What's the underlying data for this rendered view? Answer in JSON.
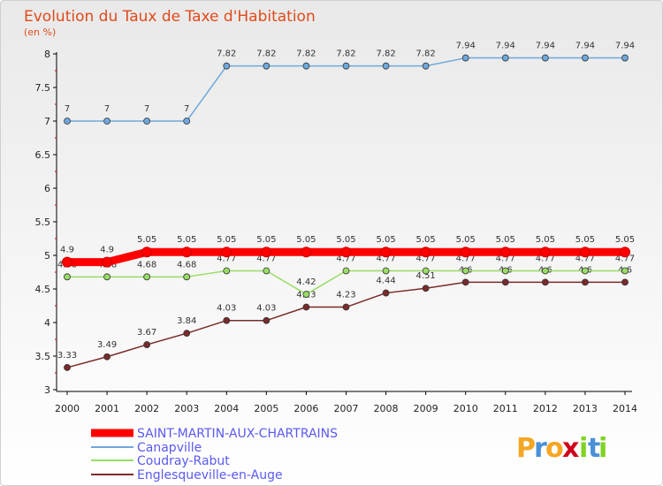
{
  "chart_data": {
    "type": "line",
    "title": "Evolution du Taux de Taxe d'Habitation",
    "subtitle": "(en %)",
    "x": [
      "2000",
      "2001",
      "2002",
      "2003",
      "2004",
      "2005",
      "2006",
      "2007",
      "2008",
      "2009",
      "2010",
      "2011",
      "2012",
      "2013",
      "2014"
    ],
    "ylim": [
      3,
      8
    ],
    "yticks": [
      "3",
      "3.5",
      "4",
      "4.5",
      "5",
      "5.5",
      "6",
      "6.5",
      "7",
      "7.5",
      "8"
    ],
    "grid": false,
    "legend_position": "bottom-left",
    "series": [
      {
        "name": "SAINT-MARTIN-AUX-CHARTRAINS",
        "color": "#ff0000",
        "values": [
          4.9,
          4.9,
          5.05,
          5.05,
          5.05,
          5.05,
          5.05,
          5.05,
          5.05,
          5.05,
          5.05,
          5.05,
          5.05,
          5.05,
          5.05
        ],
        "labels": [
          "4.9",
          "4.9",
          "5.05",
          "5.05",
          "5.05",
          "5.05",
          "5.05",
          "5.05",
          "5.05",
          "5.05",
          "5.05",
          "5.05",
          "5.05",
          "5.05",
          "5.05"
        ]
      },
      {
        "name": "Canapville",
        "color": "#6fa8dc",
        "values": [
          7,
          7,
          7,
          7,
          7.82,
          7.82,
          7.82,
          7.82,
          7.82,
          7.82,
          7.94,
          7.94,
          7.94,
          7.94,
          7.94
        ],
        "labels": [
          "7",
          "7",
          "7",
          "7",
          "7.82",
          "7.82",
          "7.82",
          "7.82",
          "7.82",
          "7.82",
          "7.94",
          "7.94",
          "7.94",
          "7.94",
          "7.94"
        ]
      },
      {
        "name": "Coudray-Rabut",
        "color": "#99dd66",
        "values": [
          4.68,
          4.68,
          4.68,
          4.68,
          4.77,
          4.77,
          4.42,
          4.77,
          4.77,
          4.77,
          4.77,
          4.77,
          4.77,
          4.77,
          4.77
        ],
        "labels": [
          "4.68",
          "4.68",
          "4.68",
          "4.68",
          "4.77",
          "4.77",
          "4.42",
          "4.77",
          "4.77",
          "4.77",
          "4.77",
          "4.77",
          "4.77",
          "4.77",
          "4.77"
        ]
      },
      {
        "name": "Englesqueville-en-Auge",
        "color": "#7a2a2a",
        "values": [
          3.33,
          3.49,
          3.67,
          3.84,
          4.03,
          4.03,
          4.23,
          4.23,
          4.44,
          4.51,
          4.6,
          4.6,
          4.6,
          4.6,
          4.6
        ],
        "labels": [
          "3.33",
          "3.49",
          "3.67",
          "3.84",
          "4.03",
          "4.03",
          "4.23",
          "4.23",
          "4.44",
          "4.51",
          "4.6",
          "4.6",
          "4.6",
          "4.6",
          "4.6"
        ]
      }
    ]
  },
  "logo": {
    "letters": [
      "P",
      "r",
      "o",
      "x",
      "i",
      "t",
      "i"
    ],
    "colors": [
      "#f5a623",
      "#4a90d9",
      "#f5a623",
      "#d0021b",
      "#7ed321",
      "#4a90d9",
      "#7ed321"
    ]
  }
}
